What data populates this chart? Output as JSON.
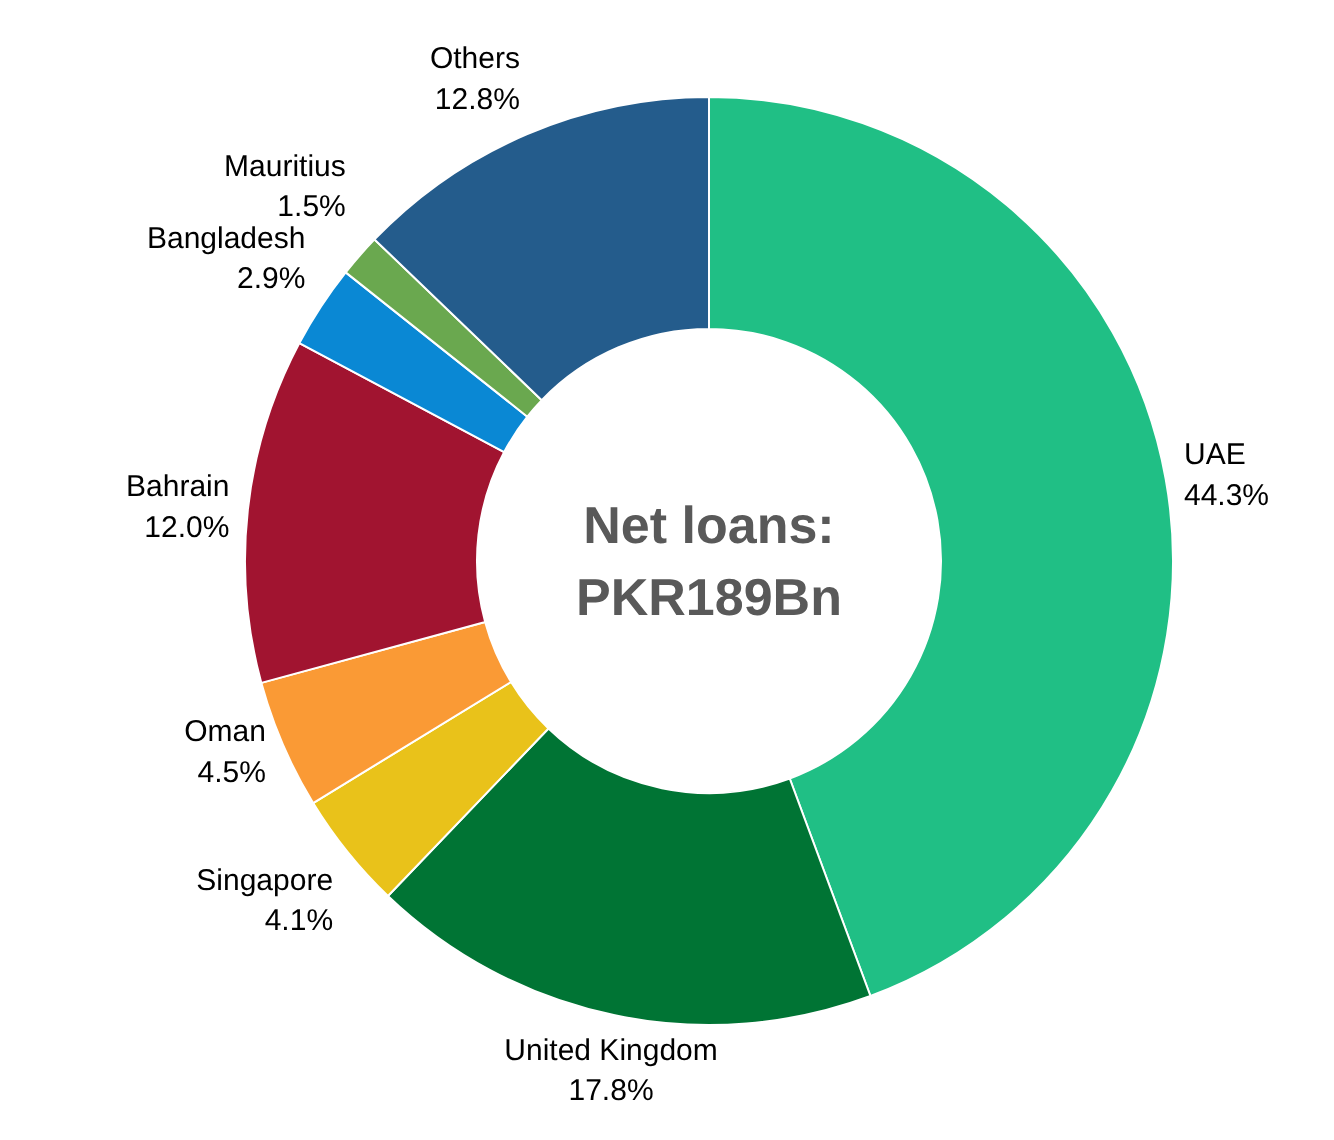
{
  "chart_data": {
    "type": "donut",
    "categories": [
      "UAE",
      "United Kingdom",
      "Singapore",
      "Oman",
      "Bahrain",
      "Bangladesh",
      "Mauritius",
      "Others"
    ],
    "values": [
      44.3,
      17.8,
      4.1,
      4.5,
      12.0,
      2.9,
      1.5,
      12.8
    ],
    "value_labels": [
      "44.3%",
      "17.8%",
      "4.1%",
      "4.5%",
      "12.0%",
      "2.9%",
      "1.5%",
      "12.8%"
    ],
    "colors": [
      "#20bf85",
      "#007434",
      "#e9c21a",
      "#fa9a35",
      "#a11430",
      "#0a88d4",
      "#6aa84f",
      "#245c8c"
    ],
    "annotations": [
      "Net loans:\nPKR189Bn"
    ]
  }
}
